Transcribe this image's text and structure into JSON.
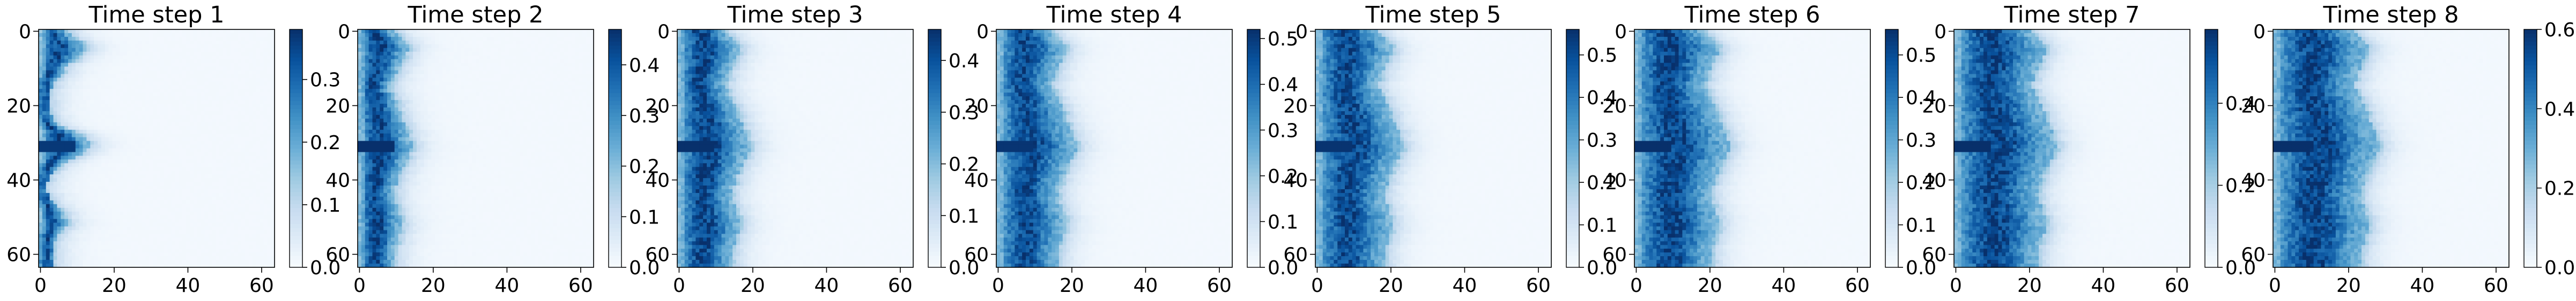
{
  "figure": {
    "panel_count": 8
  },
  "chart_data": [
    {
      "type": "heatmap",
      "title": "Time step 1",
      "grid": false,
      "colormap": "Blues",
      "shape": [
        64,
        64
      ],
      "x_ticks": [
        "0",
        "20",
        "40",
        "60"
      ],
      "y_ticks": [
        "0",
        "20",
        "40",
        "60"
      ],
      "xlim": [
        0,
        63
      ],
      "ylim": [
        63,
        0
      ],
      "colorbar": {
        "range": [
          0.0,
          0.38
        ],
        "ticks": [
          "0.0",
          "0.1",
          "0.2",
          "0.3"
        ],
        "tick_values": [
          0.0,
          0.1,
          0.2,
          0.3
        ]
      },
      "front": [
        7,
        8,
        9,
        11,
        12,
        12,
        11,
        10,
        9,
        7,
        6,
        6,
        5,
        4,
        3,
        3,
        2,
        2,
        2,
        2,
        2,
        2,
        2,
        3,
        3,
        4,
        6,
        9,
        11,
        12,
        13,
        13,
        12,
        11,
        9,
        7,
        5,
        4,
        3,
        2,
        2,
        1,
        1,
        1,
        2,
        2,
        3,
        4,
        5,
        6,
        6,
        7,
        7,
        6,
        5,
        4,
        4,
        3,
        3,
        3,
        3,
        3,
        3,
        3
      ],
      "peak": 0.36
    },
    {
      "type": "heatmap",
      "title": "Time step 2",
      "grid": false,
      "colormap": "Blues",
      "shape": [
        64,
        64
      ],
      "x_ticks": [
        "0",
        "20",
        "40",
        "60"
      ],
      "y_ticks": [
        "0",
        "20",
        "40",
        "60"
      ],
      "xlim": [
        0,
        63
      ],
      "ylim": [
        63,
        0
      ],
      "colorbar": {
        "range": [
          0.0,
          0.47
        ],
        "ticks": [
          "0.0",
          "0.1",
          "0.2",
          "0.3",
          "0.4"
        ],
        "tick_values": [
          0.0,
          0.1,
          0.2,
          0.3,
          0.4
        ]
      },
      "front": [
        9,
        10,
        11,
        12,
        13,
        13,
        12,
        12,
        11,
        11,
        10,
        10,
        9,
        9,
        8,
        8,
        8,
        9,
        9,
        10,
        10,
        10,
        11,
        11,
        11,
        12,
        12,
        13,
        13,
        13,
        14,
        14,
        14,
        13,
        13,
        12,
        12,
        11,
        11,
        10,
        10,
        10,
        9,
        9,
        9,
        9,
        9,
        10,
        10,
        10,
        11,
        11,
        11,
        11,
        11,
        10,
        10,
        10,
        9,
        9,
        9,
        9,
        9,
        9
      ],
      "peak": 0.46
    },
    {
      "type": "heatmap",
      "title": "Time step 3",
      "grid": false,
      "colormap": "Blues",
      "shape": [
        64,
        64
      ],
      "x_ticks": [
        "0",
        "20",
        "40",
        "60"
      ],
      "y_ticks": [
        "0",
        "20",
        "40",
        "60"
      ],
      "xlim": [
        0,
        63
      ],
      "ylim": [
        63,
        0
      ],
      "colorbar": {
        "range": [
          0.0,
          0.46
        ],
        "ticks": [
          "0.0",
          "0.1",
          "0.2",
          "0.3",
          "0.4"
        ],
        "tick_values": [
          0.0,
          0.1,
          0.2,
          0.3,
          0.4
        ]
      },
      "front": [
        12,
        13,
        14,
        15,
        16,
        16,
        16,
        15,
        15,
        14,
        14,
        13,
        13,
        13,
        12,
        12,
        13,
        13,
        14,
        14,
        15,
        15,
        16,
        16,
        16,
        17,
        17,
        18,
        18,
        18,
        19,
        19,
        19,
        18,
        18,
        17,
        17,
        16,
        16,
        15,
        15,
        15,
        14,
        14,
        14,
        14,
        14,
        15,
        15,
        15,
        16,
        16,
        16,
        16,
        16,
        15,
        15,
        15,
        14,
        14,
        14,
        14,
        14,
        14
      ],
      "peak": 0.45
    },
    {
      "type": "heatmap",
      "title": "Time step 4",
      "grid": false,
      "colormap": "Blues",
      "shape": [
        64,
        64
      ],
      "x_ticks": [
        "0",
        "20",
        "40",
        "60"
      ],
      "y_ticks": [
        "0",
        "20",
        "40",
        "60"
      ],
      "xlim": [
        0,
        63
      ],
      "ylim": [
        63,
        0
      ],
      "colorbar": {
        "range": [
          0.0,
          0.52
        ],
        "ticks": [
          "0.0",
          "0.1",
          "0.2",
          "0.3",
          "0.4",
          "0.5"
        ],
        "tick_values": [
          0.0,
          0.1,
          0.2,
          0.3,
          0.4,
          0.5
        ]
      },
      "front": [
        14,
        15,
        16,
        17,
        18,
        18,
        18,
        17,
        17,
        16,
        16,
        15,
        15,
        15,
        14,
        14,
        15,
        15,
        16,
        16,
        17,
        17,
        18,
        18,
        18,
        19,
        19,
        20,
        20,
        20,
        21,
        21,
        21,
        20,
        20,
        19,
        19,
        18,
        18,
        17,
        17,
        17,
        16,
        16,
        16,
        16,
        16,
        17,
        17,
        17,
        18,
        18,
        18,
        18,
        18,
        17,
        17,
        17,
        16,
        16,
        16,
        16,
        16,
        16
      ],
      "peak": 0.5
    },
    {
      "type": "heatmap",
      "title": "Time step 5",
      "grid": false,
      "colormap": "Blues",
      "shape": [
        64,
        64
      ],
      "x_ticks": [
        "0",
        "20",
        "40",
        "60"
      ],
      "y_ticks": [
        "0",
        "20",
        "40",
        "60"
      ],
      "xlim": [
        0,
        63
      ],
      "ylim": [
        63,
        0
      ],
      "colorbar": {
        "range": [
          0.0,
          0.56
        ],
        "ticks": [
          "0.0",
          "0.1",
          "0.2",
          "0.3",
          "0.4",
          "0.5"
        ],
        "tick_values": [
          0.0,
          0.1,
          0.2,
          0.3,
          0.4,
          0.5
        ]
      },
      "front": [
        16,
        17,
        18,
        19,
        20,
        20,
        20,
        19,
        19,
        18,
        18,
        17,
        17,
        17,
        16,
        16,
        17,
        17,
        18,
        18,
        19,
        19,
        20,
        20,
        20,
        21,
        21,
        22,
        22,
        22,
        23,
        23,
        23,
        22,
        22,
        21,
        21,
        20,
        20,
        19,
        19,
        19,
        18,
        18,
        18,
        18,
        18,
        19,
        19,
        19,
        20,
        20,
        20,
        20,
        20,
        19,
        19,
        19,
        18,
        18,
        18,
        18,
        18,
        18
      ],
      "peak": 0.54
    },
    {
      "type": "heatmap",
      "title": "Time step 6",
      "grid": false,
      "colormap": "Blues",
      "shape": [
        64,
        64
      ],
      "x_ticks": [
        "0",
        "20",
        "40",
        "60"
      ],
      "y_ticks": [
        "0",
        "20",
        "40",
        "60"
      ],
      "xlim": [
        0,
        63
      ],
      "ylim": [
        63,
        0
      ],
      "colorbar": {
        "range": [
          0.0,
          0.56
        ],
        "ticks": [
          "0.0",
          "0.1",
          "0.2",
          "0.3",
          "0.4",
          "0.5"
        ],
        "tick_values": [
          0.0,
          0.1,
          0.2,
          0.3,
          0.4,
          0.5
        ]
      },
      "front": [
        18,
        19,
        20,
        21,
        22,
        22,
        22,
        21,
        21,
        20,
        20,
        19,
        19,
        19,
        18,
        18,
        19,
        19,
        20,
        20,
        21,
        21,
        22,
        22,
        22,
        23,
        23,
        24,
        24,
        24,
        25,
        25,
        25,
        24,
        24,
        23,
        23,
        22,
        22,
        21,
        21,
        21,
        20,
        20,
        20,
        20,
        20,
        21,
        21,
        21,
        22,
        22,
        22,
        22,
        22,
        21,
        21,
        21,
        20,
        20,
        20,
        20,
        20,
        20
      ],
      "peak": 0.55
    },
    {
      "type": "heatmap",
      "title": "Time step 7",
      "grid": false,
      "colormap": "Blues",
      "shape": [
        64,
        64
      ],
      "x_ticks": [
        "0",
        "20",
        "40",
        "60"
      ],
      "y_ticks": [
        "0",
        "20",
        "40",
        "60"
      ],
      "xlim": [
        0,
        63
      ],
      "ylim": [
        63,
        0
      ],
      "colorbar": {
        "range": [
          0.0,
          0.58
        ],
        "ticks": [
          "0.0",
          "0.2",
          "0.4"
        ],
        "tick_values": [
          0.0,
          0.2,
          0.4
        ]
      },
      "front": [
        20,
        21,
        22,
        23,
        24,
        24,
        24,
        23,
        23,
        22,
        22,
        21,
        21,
        21,
        20,
        20,
        21,
        21,
        22,
        22,
        23,
        23,
        24,
        24,
        24,
        25,
        25,
        26,
        26,
        26,
        27,
        27,
        27,
        26,
        26,
        25,
        25,
        24,
        24,
        23,
        23,
        23,
        22,
        22,
        22,
        22,
        22,
        23,
        23,
        23,
        24,
        24,
        24,
        24,
        24,
        23,
        23,
        23,
        22,
        22,
        22,
        22,
        22,
        22
      ],
      "peak": 0.57
    },
    {
      "type": "heatmap",
      "title": "Time step 8",
      "grid": false,
      "colormap": "Blues",
      "shape": [
        64,
        64
      ],
      "x_ticks": [
        "0",
        "20",
        "40",
        "60"
      ],
      "y_ticks": [
        "0",
        "20",
        "40",
        "60"
      ],
      "xlim": [
        0,
        63
      ],
      "ylim": [
        63,
        0
      ],
      "colorbar": {
        "range": [
          0.0,
          0.6
        ],
        "ticks": [
          "0.0",
          "0.2",
          "0.4",
          "0.6"
        ],
        "tick_values": [
          0.0,
          0.2,
          0.4,
          0.6
        ]
      },
      "front": [
        21,
        22,
        23,
        24,
        25,
        25,
        25,
        24,
        24,
        23,
        23,
        22,
        22,
        22,
        21,
        21,
        22,
        22,
        23,
        23,
        24,
        24,
        25,
        25,
        25,
        26,
        26,
        27,
        27,
        27,
        28,
        28,
        28,
        27,
        27,
        26,
        26,
        25,
        25,
        24,
        24,
        24,
        23,
        23,
        23,
        23,
        23,
        24,
        24,
        24,
        25,
        25,
        25,
        25,
        25,
        24,
        24,
        24,
        23,
        23,
        23,
        23,
        23,
        23
      ],
      "peak": 0.59
    }
  ]
}
